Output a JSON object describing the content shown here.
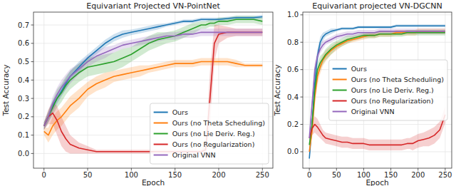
{
  "chart_data": [
    {
      "type": "line",
      "title": "Equivariant Projected VN-PointNet",
      "x_label": "Epoch",
      "y_label": "Test Accuracy",
      "x": [
        0,
        5,
        10,
        15,
        20,
        25,
        30,
        40,
        50,
        60,
        70,
        80,
        90,
        100,
        110,
        120,
        130,
        140,
        150,
        160,
        170,
        180,
        185,
        190,
        195,
        200,
        210,
        220,
        230,
        240,
        250
      ],
      "xlim": [
        -12,
        262
      ],
      "xticks": [
        0,
        50,
        100,
        150,
        200,
        250
      ],
      "ylim": [
        -0.08,
        0.77
      ],
      "yticks": [
        {
          "value": 0,
          "label": "0.0"
        },
        {
          "value": 0.1,
          "label": "0.1"
        },
        {
          "value": 0.2,
          "label": "0.2"
        },
        {
          "value": 0.3,
          "label": "0.3"
        },
        {
          "value": 0.4,
          "label": "0.4"
        },
        {
          "value": 0.5,
          "label": "0.5"
        },
        {
          "value": 0.6,
          "label": "0.6"
        },
        {
          "value": 0.7,
          "label": "0.7"
        }
      ],
      "grid": true,
      "legend": "lower right",
      "series": [
        {
          "name": "Ours",
          "color": "#1f77b4",
          "values": [
            0.15,
            0.2,
            0.26,
            0.3,
            0.34,
            0.38,
            0.42,
            0.47,
            0.52,
            0.56,
            0.6,
            0.63,
            0.65,
            0.66,
            0.67,
            0.68,
            0.69,
            0.7,
            0.71,
            0.72,
            0.72,
            0.73,
            0.73,
            0.73,
            0.73,
            0.73,
            0.735,
            0.74,
            0.74,
            0.74,
            0.745
          ],
          "error": [
            0.02,
            0.03,
            0.03,
            0.03,
            0.03,
            0.03,
            0.03,
            0.03,
            0.02,
            0.02,
            0.02,
            0.02,
            0.02,
            0.015,
            0.015,
            0.015,
            0.015,
            0.01,
            0.01,
            0.01,
            0.01,
            0.01,
            0.01,
            0.01,
            0.01,
            0.01,
            0.01,
            0.01,
            0.01,
            0.01,
            0.01
          ]
        },
        {
          "name": "Ours (no Theta Scheduling)",
          "color": "#ff7f0e",
          "values": [
            0.12,
            0.1,
            0.15,
            0.18,
            0.2,
            0.23,
            0.26,
            0.3,
            0.35,
            0.38,
            0.4,
            0.42,
            0.43,
            0.44,
            0.45,
            0.46,
            0.47,
            0.48,
            0.49,
            0.49,
            0.49,
            0.5,
            0.5,
            0.5,
            0.5,
            0.5,
            0.5,
            0.49,
            0.48,
            0.48,
            0.48
          ],
          "error": [
            0.02,
            0.04,
            0.05,
            0.05,
            0.05,
            0.05,
            0.05,
            0.05,
            0.04,
            0.04,
            0.04,
            0.03,
            0.03,
            0.03,
            0.03,
            0.02,
            0.02,
            0.02,
            0.02,
            0.02,
            0.02,
            0.02,
            0.02,
            0.02,
            0.02,
            0.02,
            0.02,
            0.02,
            0.01,
            0.01,
            0.01
          ]
        },
        {
          "name": "Ours (no Lie Deriv. Reg.)",
          "color": "#2ca02c",
          "values": [
            0.15,
            0.2,
            0.25,
            0.3,
            0.33,
            0.37,
            0.4,
            0.44,
            0.47,
            0.48,
            0.49,
            0.5,
            0.52,
            0.54,
            0.57,
            0.6,
            0.62,
            0.63,
            0.64,
            0.66,
            0.68,
            0.7,
            0.7,
            0.71,
            0.71,
            0.72,
            0.72,
            0.73,
            0.73,
            0.73,
            0.72
          ],
          "error": [
            0.02,
            0.03,
            0.04,
            0.05,
            0.05,
            0.05,
            0.05,
            0.05,
            0.05,
            0.05,
            0.05,
            0.05,
            0.05,
            0.04,
            0.04,
            0.04,
            0.04,
            0.03,
            0.03,
            0.03,
            0.03,
            0.02,
            0.02,
            0.02,
            0.02,
            0.02,
            0.02,
            0.02,
            0.02,
            0.02,
            0.02
          ]
        },
        {
          "name": "Ours (no Regularization)",
          "color": "#d62728",
          "values": [
            0.15,
            0.2,
            0.22,
            0.18,
            0.12,
            0.08,
            0.05,
            0.03,
            0.02,
            0.01,
            0.01,
            0.01,
            0.01,
            0.01,
            0.01,
            0.01,
            0.01,
            0.01,
            0.01,
            0.01,
            0.01,
            0.01,
            0.02,
            0.3,
            0.6,
            0.65,
            0.66,
            0.66,
            0.66,
            0.66,
            0.66
          ],
          "error": [
            0.02,
            0.04,
            0.06,
            0.08,
            0.08,
            0.07,
            0.05,
            0.03,
            0.02,
            0.01,
            0.01,
            0.01,
            0.01,
            0.01,
            0.01,
            0.01,
            0.01,
            0.01,
            0.01,
            0.01,
            0.01,
            0.01,
            0.03,
            0.15,
            0.1,
            0.05,
            0.03,
            0.02,
            0.02,
            0.02,
            0.02
          ]
        },
        {
          "name": "Original VNN",
          "color": "#9467bd",
          "values": [
            0.15,
            0.2,
            0.27,
            0.32,
            0.36,
            0.39,
            0.42,
            0.46,
            0.5,
            0.53,
            0.55,
            0.57,
            0.59,
            0.6,
            0.61,
            0.62,
            0.63,
            0.64,
            0.64,
            0.65,
            0.65,
            0.66,
            0.66,
            0.66,
            0.66,
            0.66,
            0.66,
            0.66,
            0.66,
            0.66,
            0.66
          ],
          "error": [
            0.02,
            0.03,
            0.04,
            0.04,
            0.04,
            0.04,
            0.04,
            0.03,
            0.03,
            0.03,
            0.03,
            0.02,
            0.02,
            0.02,
            0.02,
            0.02,
            0.02,
            0.02,
            0.02,
            0.02,
            0.02,
            0.02,
            0.02,
            0.02,
            0.02,
            0.02,
            0.02,
            0.02,
            0.02,
            0.02,
            0.02
          ]
        }
      ]
    },
    {
      "type": "line",
      "title": "Equivariant projected VN-DGCNN",
      "x_label": "Epoch",
      "y_label": "Test Accuracy",
      "x": [
        0,
        5,
        10,
        15,
        20,
        25,
        30,
        40,
        50,
        60,
        70,
        80,
        90,
        100,
        110,
        120,
        130,
        140,
        150,
        160,
        170,
        180,
        185,
        190,
        195,
        200,
        210,
        220,
        230,
        240,
        250
      ],
      "xlim": [
        -12,
        262
      ],
      "xticks": [
        0,
        50,
        100,
        150,
        200,
        250
      ],
      "ylim": [
        -0.12,
        1.02
      ],
      "yticks": [
        {
          "value": 0,
          "label": "0.0"
        },
        {
          "value": 0.2,
          "label": "0.2"
        },
        {
          "value": 0.4,
          "label": "0.4"
        },
        {
          "value": 0.6,
          "label": "0.6"
        },
        {
          "value": 0.8,
          "label": "0.8"
        },
        {
          "value": 1,
          "label": "1.0"
        }
      ],
      "grid": true,
      "legend": "center right",
      "series": [
        {
          "name": "Ours",
          "color": "#1f77b4",
          "values": [
            -0.05,
            0.2,
            0.5,
            0.7,
            0.8,
            0.84,
            0.86,
            0.88,
            0.89,
            0.9,
            0.9,
            0.9,
            0.91,
            0.91,
            0.91,
            0.91,
            0.91,
            0.91,
            0.91,
            0.92,
            0.92,
            0.92,
            0.92,
            0.92,
            0.92,
            0.92,
            0.92,
            0.92,
            0.92,
            0.92,
            0.92
          ],
          "error": [
            0.02,
            0.05,
            0.06,
            0.05,
            0.04,
            0.03,
            0.02,
            0.02,
            0.01,
            0.01,
            0.01,
            0.01,
            0.01,
            0.01,
            0.01,
            0.01,
            0.01,
            0.01,
            0.01,
            0.01,
            0.01,
            0.01,
            0.01,
            0.01,
            0.01,
            0.01,
            0.01,
            0.01,
            0.01,
            0.01,
            0.01
          ]
        },
        {
          "name": "Ours (no Theta Scheduling)",
          "color": "#ff7f0e",
          "values": [
            0.0,
            0.15,
            0.4,
            0.55,
            0.62,
            0.67,
            0.7,
            0.74,
            0.77,
            0.79,
            0.81,
            0.82,
            0.83,
            0.84,
            0.85,
            0.85,
            0.86,
            0.86,
            0.86,
            0.87,
            0.87,
            0.87,
            0.87,
            0.87,
            0.87,
            0.88,
            0.88,
            0.88,
            0.88,
            0.88,
            0.88
          ],
          "error": [
            0.02,
            0.05,
            0.07,
            0.06,
            0.05,
            0.04,
            0.04,
            0.03,
            0.03,
            0.02,
            0.02,
            0.02,
            0.02,
            0.02,
            0.02,
            0.02,
            0.02,
            0.02,
            0.02,
            0.02,
            0.02,
            0.02,
            0.02,
            0.02,
            0.02,
            0.02,
            0.02,
            0.02,
            0.02,
            0.02,
            0.02
          ]
        },
        {
          "name": "Ours (no Lie Deriv. Reg.)",
          "color": "#2ca02c",
          "values": [
            0.05,
            0.2,
            0.45,
            0.6,
            0.65,
            0.68,
            0.71,
            0.75,
            0.78,
            0.8,
            0.82,
            0.83,
            0.84,
            0.85,
            0.85,
            0.85,
            0.86,
            0.86,
            0.86,
            0.86,
            0.86,
            0.87,
            0.87,
            0.87,
            0.87,
            0.87,
            0.87,
            0.87,
            0.87,
            0.87,
            0.87
          ],
          "error": [
            0.02,
            0.05,
            0.06,
            0.05,
            0.05,
            0.04,
            0.04,
            0.04,
            0.03,
            0.03,
            0.03,
            0.02,
            0.02,
            0.02,
            0.02,
            0.02,
            0.02,
            0.02,
            0.02,
            0.02,
            0.02,
            0.02,
            0.02,
            0.02,
            0.02,
            0.02,
            0.02,
            0.02,
            0.02,
            0.02,
            0.02
          ]
        },
        {
          "name": "Ours (no Regularization)",
          "color": "#d62728",
          "values": [
            0.1,
            0.17,
            0.2,
            0.18,
            0.15,
            0.12,
            0.1,
            0.09,
            0.08,
            0.07,
            0.07,
            0.06,
            0.06,
            0.06,
            0.05,
            0.05,
            0.05,
            0.05,
            0.05,
            0.05,
            0.05,
            0.06,
            0.06,
            0.06,
            0.07,
            0.08,
            0.09,
            0.1,
            0.12,
            0.16,
            0.27
          ],
          "error": [
            0.02,
            0.05,
            0.06,
            0.06,
            0.05,
            0.04,
            0.04,
            0.04,
            0.04,
            0.04,
            0.04,
            0.04,
            0.04,
            0.04,
            0.04,
            0.04,
            0.04,
            0.04,
            0.04,
            0.04,
            0.04,
            0.04,
            0.04,
            0.05,
            0.05,
            0.05,
            0.05,
            0.06,
            0.06,
            0.06,
            0.06
          ]
        },
        {
          "name": "Original VNN",
          "color": "#9467bd",
          "values": [
            0.1,
            0.35,
            0.6,
            0.7,
            0.75,
            0.78,
            0.8,
            0.82,
            0.84,
            0.85,
            0.86,
            0.86,
            0.87,
            0.87,
            0.87,
            0.87,
            0.88,
            0.88,
            0.88,
            0.88,
            0.88,
            0.88,
            0.88,
            0.88,
            0.88,
            0.88,
            0.88,
            0.88,
            0.88,
            0.88,
            0.88
          ],
          "error": [
            0.02,
            0.05,
            0.05,
            0.04,
            0.03,
            0.03,
            0.02,
            0.02,
            0.02,
            0.02,
            0.02,
            0.02,
            0.02,
            0.02,
            0.02,
            0.02,
            0.02,
            0.02,
            0.02,
            0.02,
            0.02,
            0.02,
            0.02,
            0.02,
            0.02,
            0.02,
            0.02,
            0.02,
            0.02,
            0.02,
            0.02
          ]
        }
      ]
    }
  ]
}
